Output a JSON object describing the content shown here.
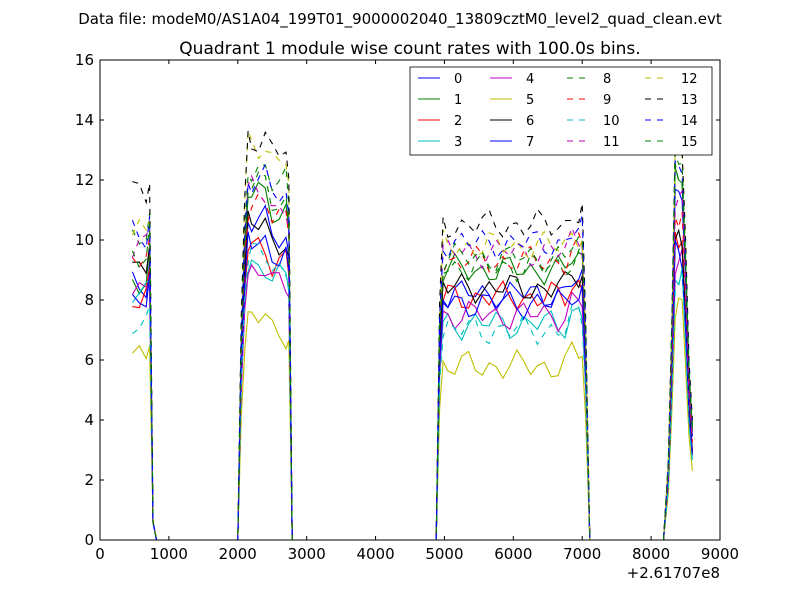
{
  "chart_data": {
    "type": "line",
    "suptitle": "Data file: modeM0/AS1A04_199T01_9000002040_13809cztM0_level2_quad_clean.evt",
    "title": "Quadrant 1 module wise count rates with 100.0s bins.",
    "xlabel": "",
    "ylabel": "",
    "x_offset_label": "+2.61707e8",
    "xlim": [
      0,
      9000
    ],
    "ylim": [
      0,
      16
    ],
    "xticks": [
      0,
      1000,
      2000,
      3000,
      4000,
      5000,
      6000,
      7000,
      8000,
      9000
    ],
    "yticks": [
      0,
      2,
      4,
      6,
      8,
      10,
      12,
      14,
      16
    ],
    "legend_position": "upper right",
    "legend_columns": 4,
    "segments": [
      {
        "x": [
          470,
          570,
          670,
          720,
          770,
          820,
          870
        ]
      },
      {
        "x": [
          2000,
          2050,
          2100,
          2150,
          2200,
          2300,
          2400,
          2500,
          2600,
          2700,
          2740,
          2790
        ]
      },
      {
        "x": [
          4880,
          4930,
          4980,
          5050,
          5150,
          5250,
          5350,
          5450,
          5550,
          5650,
          5750,
          5850,
          5950,
          6050,
          6150,
          6250,
          6350,
          6450,
          6550,
          6650,
          6750,
          6850,
          6950,
          7000,
          7050,
          7110
        ]
      },
      {
        "x": [
          8180,
          8250,
          8300,
          8350,
          8400,
          8450,
          8500,
          8550,
          8600
        ]
      }
    ],
    "series": [
      {
        "name": "0",
        "color": "#0000ff",
        "dash": "solid",
        "levels": [
          8.6,
          10.6,
          8.2,
          11.5
        ]
      },
      {
        "name": "1",
        "color": "#008000",
        "dash": "solid",
        "levels": [
          8.7,
          11.5,
          9.0,
          12.0
        ]
      },
      {
        "name": "2",
        "color": "#ff0000",
        "dash": "solid",
        "levels": [
          8.0,
          9.8,
          8.1,
          10.0
        ]
      },
      {
        "name": "3",
        "color": "#00bfbf",
        "dash": "solid",
        "levels": [
          8.1,
          9.2,
          7.2,
          8.9
        ]
      },
      {
        "name": "4",
        "color": "#bf00bf",
        "dash": "solid",
        "levels": [
          8.3,
          9.0,
          7.5,
          9.4
        ]
      },
      {
        "name": "5",
        "color": "#bfbf00",
        "dash": "solid",
        "levels": [
          6.3,
          7.4,
          5.8,
          7.7
        ]
      },
      {
        "name": "6",
        "color": "#000000",
        "dash": "solid",
        "levels": [
          9.2,
          10.5,
          8.4,
          9.8
        ]
      },
      {
        "name": "7",
        "color": "#0000ff",
        "dash": "solid",
        "levels": [
          7.9,
          10.0,
          7.9,
          9.5
        ]
      },
      {
        "name": "8",
        "color": "#008000",
        "dash": "dashed",
        "levels": [
          10.0,
          12.4,
          9.1,
          12.3
        ]
      },
      {
        "name": "9",
        "color": "#ff0000",
        "dash": "dashed",
        "levels": [
          9.4,
          11.2,
          9.3,
          10.9
        ]
      },
      {
        "name": "10",
        "color": "#00bfbf",
        "dash": "dashed",
        "levels": [
          7.3,
          9.5,
          7.0,
          8.6
        ]
      },
      {
        "name": "11",
        "color": "#bf00bf",
        "dash": "dashed",
        "levels": [
          9.9,
          11.6,
          9.6,
          11.2
        ]
      },
      {
        "name": "12",
        "color": "#bfbf00",
        "dash": "dashed",
        "levels": [
          10.2,
          13.2,
          9.8,
          13.0
        ]
      },
      {
        "name": "13",
        "color": "#000000",
        "dash": "dashed",
        "levels": [
          11.5,
          13.4,
          10.5,
          13.3
        ]
      },
      {
        "name": "14",
        "color": "#0000ff",
        "dash": "dashed",
        "levels": [
          10.2,
          12.0,
          9.9,
          12.5
        ]
      },
      {
        "name": "15",
        "color": "#008000",
        "dash": "dashed",
        "levels": [
          9.6,
          11.8,
          9.4,
          12.6
        ]
      }
    ]
  }
}
